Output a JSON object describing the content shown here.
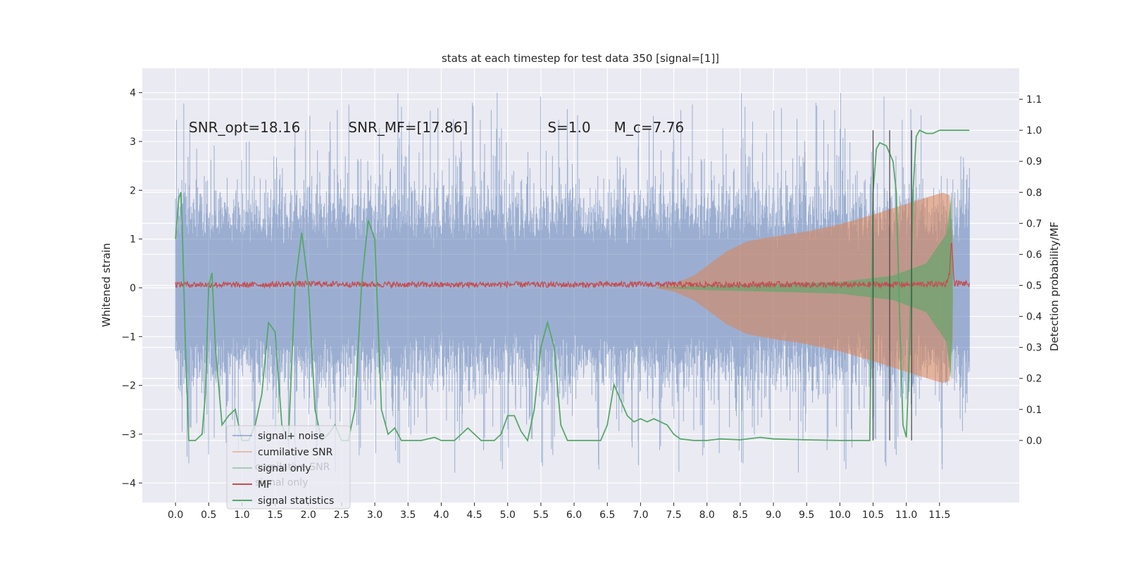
{
  "chart_data": {
    "type": "line",
    "title": "stats at each timestep for test data 350 [signal=[1]]",
    "xlabel": "",
    "ylabel": "Whitened strain",
    "ylabel_right": "Detection probability/MF",
    "xlim": [
      -0.5,
      12.7
    ],
    "ylim": [
      -4.4,
      4.5
    ],
    "ylim_right": [
      -0.2,
      1.2
    ],
    "xticks": [
      "0.0",
      "0.5",
      "1.0",
      "1.5",
      "2.0",
      "2.5",
      "3.0",
      "3.5",
      "4.0",
      "4.5",
      "5.0",
      "5.5",
      "6.0",
      "6.5",
      "7.0",
      "7.5",
      "8.0",
      "8.5",
      "9.0",
      "9.5",
      "10.0",
      "10.5",
      "11.0",
      "11.5"
    ],
    "xtick_values": [
      0,
      0.5,
      1,
      1.5,
      2,
      2.5,
      3,
      3.5,
      4,
      4.5,
      5,
      5.5,
      6,
      6.5,
      7,
      7.5,
      8,
      8.5,
      9,
      9.5,
      10,
      10.5,
      11,
      11.5
    ],
    "yticks": [
      "4",
      "3",
      "2",
      "1",
      "0",
      "−1",
      "−2",
      "−3",
      "−4"
    ],
    "ytick_values": [
      4,
      3,
      2,
      1,
      0,
      -1,
      -2,
      -3,
      -4
    ],
    "yticks_right": [
      "1.1",
      "1.0",
      "0.9",
      "0.8",
      "0.7",
      "0.6",
      "0.5",
      "0.4",
      "0.3",
      "0.2",
      "0.1",
      "0.0"
    ],
    "ytick_right_values": [
      1.1,
      1.0,
      0.9,
      0.8,
      0.7,
      0.6,
      0.5,
      0.4,
      0.3,
      0.2,
      0.1,
      0.0
    ],
    "annotations": [
      {
        "text": "SNR_opt=18.16",
        "x": 0.2,
        "y": 3.3
      },
      {
        "text": "SNR_MF=[17.86]",
        "x": 2.6,
        "y": 3.3
      },
      {
        "text": "S=1.0",
        "x": 5.6,
        "y": 3.3
      },
      {
        "text": "M_c=7.76",
        "x": 6.6,
        "y": 3.3
      }
    ],
    "series": [
      {
        "name": "signal+ noise",
        "color": "#4c72b0",
        "axis": "left",
        "kind": "noise-band",
        "x_range": [
          0,
          11.95
        ],
        "typical_amplitude": 1.9,
        "max_peaks": 4.0
      },
      {
        "name": "cumilative SNR",
        "color": "#dd8452",
        "axis": "left",
        "kind": "envelope",
        "x": [
          7.2,
          7.5,
          7.8,
          8.0,
          8.3,
          8.6,
          9.0,
          9.5,
          10.0,
          10.5,
          11.0,
          11.3,
          11.55,
          11.65,
          11.7
        ],
        "amplitude": [
          0.0,
          0.08,
          0.25,
          0.45,
          0.75,
          0.95,
          1.05,
          1.15,
          1.3,
          1.5,
          1.72,
          1.85,
          1.95,
          1.9,
          1.0
        ]
      },
      {
        "name": "signal only",
        "color": "#55a868",
        "axis": "left",
        "kind": "envelope",
        "x": [
          7.2,
          8.0,
          9.0,
          10.0,
          10.8,
          11.3,
          11.6,
          11.68,
          11.7
        ],
        "amplitude": [
          0.0,
          0.05,
          0.08,
          0.12,
          0.25,
          0.5,
          1.1,
          1.9,
          0.3
        ]
      },
      {
        "name": "MF",
        "color": "#c44e52",
        "axis": "left",
        "kind": "line",
        "x": [
          0,
          1,
          2,
          3,
          4,
          5,
          6,
          7,
          8,
          9,
          10,
          11,
          11.6,
          11.65,
          11.68,
          11.72,
          12.0
        ],
        "y": [
          0.07,
          0.06,
          0.08,
          0.07,
          0.06,
          0.07,
          0.06,
          0.07,
          0.06,
          0.07,
          0.06,
          0.07,
          0.08,
          0.3,
          1.0,
          0.1,
          0.07
        ]
      },
      {
        "name": "signal statistics",
        "color": "#55a868",
        "axis": "right",
        "kind": "line",
        "x": [
          0,
          0.05,
          0.08,
          0.1,
          0.15,
          0.2,
          0.3,
          0.4,
          0.45,
          0.5,
          0.55,
          0.6,
          0.7,
          0.8,
          0.9,
          1.0,
          1.1,
          1.2,
          1.3,
          1.4,
          1.5,
          1.6,
          1.7,
          1.8,
          1.9,
          2.0,
          2.1,
          2.2,
          2.3,
          2.4,
          2.5,
          2.6,
          2.7,
          2.8,
          2.9,
          3.0,
          3.1,
          3.2,
          3.3,
          3.4,
          3.5,
          3.7,
          3.9,
          4.0,
          4.2,
          4.4,
          4.5,
          4.6,
          4.7,
          4.8,
          4.9,
          5.0,
          5.1,
          5.2,
          5.3,
          5.4,
          5.5,
          5.6,
          5.7,
          5.8,
          5.9,
          6.0,
          6.2,
          6.4,
          6.5,
          6.6,
          6.7,
          6.8,
          6.9,
          7.0,
          7.1,
          7.2,
          7.3,
          7.4,
          7.5,
          7.6,
          7.8,
          8.0,
          8.2,
          8.5,
          8.8,
          9.0,
          9.5,
          10.0,
          10.3,
          10.45,
          10.5,
          10.55,
          10.6,
          10.7,
          10.8,
          10.85,
          10.9,
          10.95,
          11.0,
          11.05,
          11.1,
          11.15,
          11.2,
          11.3,
          11.4,
          11.5,
          11.6,
          11.8,
          11.95
        ],
        "y": [
          0.65,
          0.78,
          0.8,
          0.7,
          0.3,
          0.0,
          0.0,
          0.02,
          0.15,
          0.5,
          0.54,
          0.3,
          0.05,
          0.08,
          0.1,
          0.0,
          0.0,
          0.05,
          0.15,
          0.38,
          0.35,
          0.05,
          0.0,
          0.5,
          0.67,
          0.5,
          0.1,
          0.0,
          0.02,
          0.05,
          0.0,
          0.0,
          0.1,
          0.5,
          0.71,
          0.65,
          0.1,
          0.02,
          0.04,
          0.0,
          0.0,
          0.0,
          0.01,
          0.0,
          0.0,
          0.04,
          0.02,
          0.0,
          0.0,
          0.0,
          0.02,
          0.08,
          0.08,
          0.03,
          0.0,
          0.1,
          0.3,
          0.38,
          0.3,
          0.05,
          0.0,
          0.0,
          0.0,
          0.0,
          0.05,
          0.18,
          0.13,
          0.08,
          0.06,
          0.07,
          0.06,
          0.07,
          0.06,
          0.05,
          0.02,
          0.005,
          0.0,
          0.0,
          0.005,
          0.002,
          0.01,
          0.005,
          0.002,
          0.0,
          0.0,
          0.0,
          0.8,
          0.94,
          0.96,
          0.95,
          0.9,
          0.8,
          0.4,
          0.05,
          0.01,
          0.3,
          0.8,
          0.98,
          1.0,
          0.99,
          0.99,
          1.0,
          1.0,
          1.0,
          1.0
        ]
      }
    ],
    "vertical_lines": [
      10.5,
      10.75,
      11.08
    ],
    "legend_location": "lower-left",
    "legend_extra_ghost": [
      "cumilative SNR",
      "signal only"
    ],
    "grid": true
  }
}
